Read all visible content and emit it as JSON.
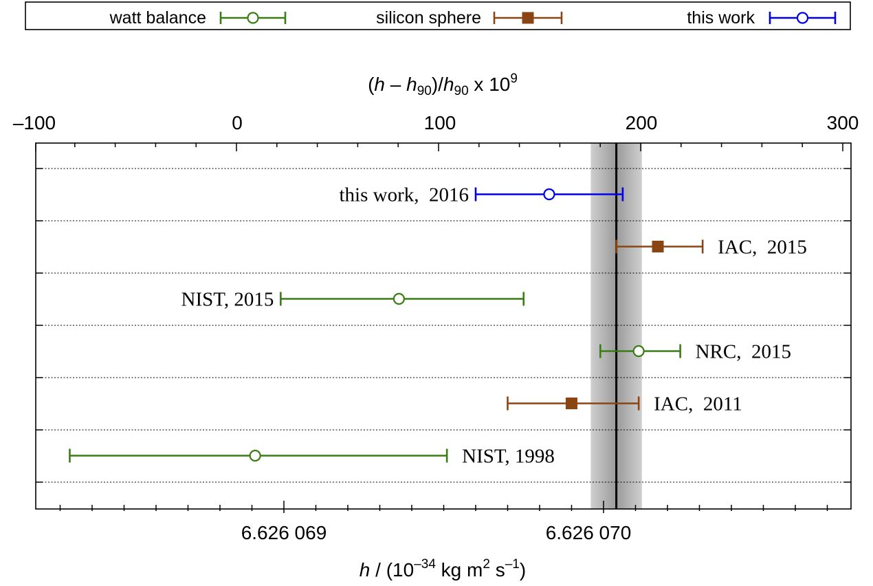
{
  "chart_data": {
    "type": "scatter",
    "subtype": "errorbar-comparison",
    "legend": {
      "placement": "top",
      "entries": [
        {
          "label": "watt balance",
          "color": "#3a7d15",
          "marker": "open-circle"
        },
        {
          "label": "silicon sphere",
          "color": "#8b4513",
          "marker": "filled-square"
        },
        {
          "label": "this work",
          "color": "#0000ee",
          "marker": "open-circle"
        }
      ]
    },
    "top_axis": {
      "label_parts": {
        "lp": "(",
        "h1": "h",
        "mid": " – ",
        "h2": "h",
        "sub": "90",
        "slash": ")/",
        "h3": "h",
        "sub2": "90",
        "times": " x 10",
        "exp": "9"
      },
      "range": [
        -100,
        300
      ],
      "major_ticks": [
        -100,
        0,
        100,
        200,
        300
      ],
      "tick_labels": [
        "–100",
        "0",
        "100",
        "200",
        "300"
      ]
    },
    "bottom_axis": {
      "label_parts": {
        "h": "h",
        "pre": " / (10",
        "exp1": "–34",
        "mid": " kg m",
        "exp2": "2",
        "s": " s",
        "exp3": "–1",
        "close": ")"
      },
      "range": [
        6.6260682,
        6.6260709
      ],
      "major_ticks": [
        6.626069,
        6.62607
      ],
      "tick_labels": [
        "6.626 069",
        "6.626 070"
      ]
    },
    "reference": {
      "value": 6.62607004,
      "uncertainty": 8e-08
    },
    "grid": {
      "horizontal": true,
      "style": "dotted"
    },
    "series": [
      {
        "label": "this work,  2016",
        "group": "this work",
        "value": 6.62606983,
        "lower": 6.6260696,
        "upper": 6.62607006,
        "label_side": "left"
      },
      {
        "label": "IAC,  2015",
        "group": "silicon sphere",
        "value": 6.62607017,
        "lower": 6.62607004,
        "upper": 6.62607031,
        "label_side": "right"
      },
      {
        "label": "NIST, 2015",
        "group": "watt balance",
        "value": 6.62606936,
        "lower": 6.62606899,
        "upper": 6.62606975,
        "label_side": "left"
      },
      {
        "label": "NRC,  2015",
        "group": "watt balance",
        "value": 6.62607011,
        "lower": 6.62606999,
        "upper": 6.62607024,
        "label_side": "right"
      },
      {
        "label": "IAC,  2011",
        "group": "silicon sphere",
        "value": 6.6260699,
        "lower": 6.6260697,
        "upper": 6.62607011,
        "label_side": "right"
      },
      {
        "label": "NIST, 1998",
        "group": "watt balance",
        "value": 6.62606891,
        "lower": 6.62606833,
        "upper": 6.62606951,
        "label_side": "right"
      }
    ]
  }
}
